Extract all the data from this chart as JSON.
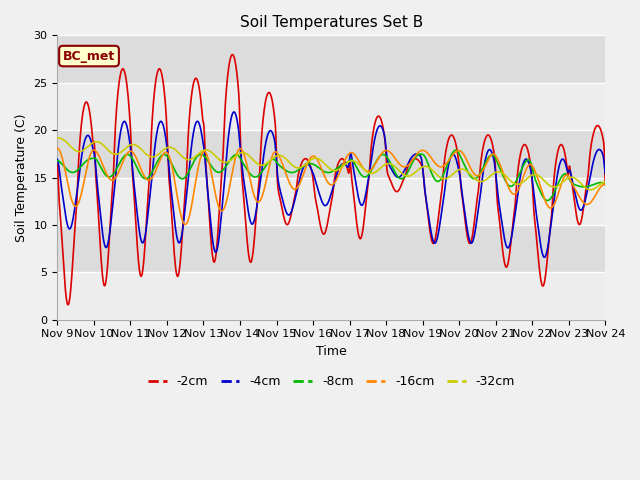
{
  "title": "Soil Temperatures Set B",
  "xlabel": "Time",
  "ylabel": "Soil Temperature (C)",
  "ylim": [
    0,
    30
  ],
  "annotation": "BC_met",
  "annotation_color": "#8B0000",
  "annotation_bg": "#ffffcc",
  "annotation_border": "#8B0000",
  "bg_color": "#dcdcdc",
  "fig_color": "#f0f0f0",
  "series_colors": {
    "-2cm": "#dd0000",
    "-4cm": "#0000cc",
    "-8cm": "#00bb00",
    "-16cm": "#ff8800",
    "-32cm": "#cccc00"
  },
  "x_tick_labels": [
    "Nov 9",
    "Nov 10",
    "Nov 11",
    "Nov 12",
    "Nov 13",
    "Nov 14",
    "Nov 15",
    "Nov 16",
    "Nov 17",
    "Nov 18",
    "Nov 19",
    "Nov 20",
    "Nov 21",
    "Nov 22",
    "Nov 23",
    "Nov 24"
  ],
  "x_tick_positions": [
    0,
    24,
    48,
    72,
    96,
    120,
    144,
    168,
    192,
    216,
    240,
    264,
    288,
    312,
    336,
    360
  ],
  "yticks": [
    0,
    5,
    10,
    15,
    20,
    25,
    30
  ],
  "legend_labels": [
    "-2cm",
    "-4cm",
    "-8cm",
    "-16cm",
    "-32cm"
  ]
}
